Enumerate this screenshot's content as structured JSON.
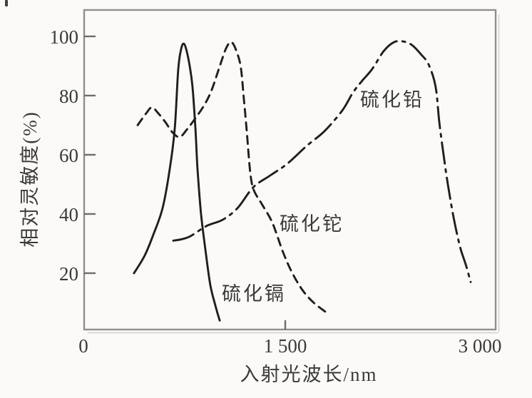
{
  "figure": {
    "background_color": "#fbfaf8",
    "frame_color": "#8f8f8f",
    "curve_color": "#1f1f1f",
    "text_color": "#3a3a3a"
  },
  "axes": {
    "x": {
      "title": "入射光波长/nm",
      "tick_labels": [
        "0",
        "1 500",
        "3 000"
      ],
      "tick_values": [
        0,
        1500,
        3000
      ],
      "tick_marks": [
        1500
      ]
    },
    "y": {
      "title": "相对灵敏度(%)",
      "tick_labels": [
        "100",
        "80",
        "60",
        "40",
        "20"
      ],
      "tick_values": [
        100,
        80,
        60,
        40,
        20
      ]
    }
  },
  "chart_data": {
    "type": "line",
    "title": "",
    "xlabel": "入射光波长/nm",
    "ylabel": "相对灵敏度(%)",
    "xlim": [
      0,
      3070
    ],
    "ylim": [
      0,
      109
    ],
    "x_ticks": [
      0,
      1500,
      3000
    ],
    "y_ticks": [
      20,
      40,
      60,
      80,
      100
    ],
    "grid": false,
    "legend": "inline-labels",
    "series": [
      {
        "name": "硫化镉",
        "material": "cadmium sulfide",
        "style": "solid",
        "points": [
          [
            372,
            20
          ],
          [
            452,
            26
          ],
          [
            516,
            33
          ],
          [
            585,
            42
          ],
          [
            638,
            55
          ],
          [
            676,
            69
          ],
          [
            702,
            89
          ],
          [
            725,
            96
          ],
          [
            745,
            97.5
          ],
          [
            765,
            95
          ],
          [
            787,
            90
          ],
          [
            808,
            83
          ],
          [
            830,
            69
          ],
          [
            846,
            55
          ],
          [
            872,
            40
          ],
          [
            904,
            28
          ],
          [
            941,
            16
          ],
          [
            979,
            9
          ],
          [
            1011,
            4
          ]
        ]
      },
      {
        "name": "硫化铊",
        "material": "thallium sulfide",
        "style": "dashed",
        "points": [
          [
            399,
            70
          ],
          [
            463,
            74
          ],
          [
            505,
            76
          ],
          [
            553,
            74
          ],
          [
            606,
            71
          ],
          [
            660,
            67.5
          ],
          [
            713,
            66
          ],
          [
            766,
            68.5
          ],
          [
            824,
            72
          ],
          [
            899,
            77
          ],
          [
            952,
            82
          ],
          [
            1005,
            89
          ],
          [
            1059,
            96
          ],
          [
            1101,
            98
          ],
          [
            1144,
            94
          ],
          [
            1170,
            89
          ],
          [
            1191,
            79
          ],
          [
            1213,
            68
          ],
          [
            1239,
            54
          ],
          [
            1266,
            48
          ],
          [
            1330,
            43
          ],
          [
            1404,
            37
          ],
          [
            1484,
            27
          ],
          [
            1553,
            20
          ],
          [
            1633,
            14
          ],
          [
            1713,
            10
          ],
          [
            1798,
            7
          ]
        ]
      },
      {
        "name": "硫化铅",
        "material": "lead sulfide",
        "style": "dash-dot",
        "points": [
          [
            665,
            31
          ],
          [
            729,
            31.5
          ],
          [
            793,
            32.5
          ],
          [
            915,
            36
          ],
          [
            1032,
            38
          ],
          [
            1144,
            42
          ],
          [
            1261,
            49
          ],
          [
            1388,
            53
          ],
          [
            1516,
            57
          ],
          [
            1660,
            63
          ],
          [
            1793,
            68
          ],
          [
            1926,
            75
          ],
          [
            2005,
            81
          ],
          [
            2074,
            85
          ],
          [
            2149,
            89
          ],
          [
            2234,
            95
          ],
          [
            2309,
            98
          ],
          [
            2378,
            98.3
          ],
          [
            2447,
            97
          ],
          [
            2511,
            94
          ],
          [
            2564,
            91
          ],
          [
            2606,
            86
          ],
          [
            2628,
            81
          ],
          [
            2649,
            71
          ],
          [
            2681,
            60
          ],
          [
            2713,
            50
          ],
          [
            2755,
            39
          ],
          [
            2803,
            29
          ],
          [
            2846,
            23
          ],
          [
            2883,
            17
          ]
        ]
      }
    ]
  }
}
